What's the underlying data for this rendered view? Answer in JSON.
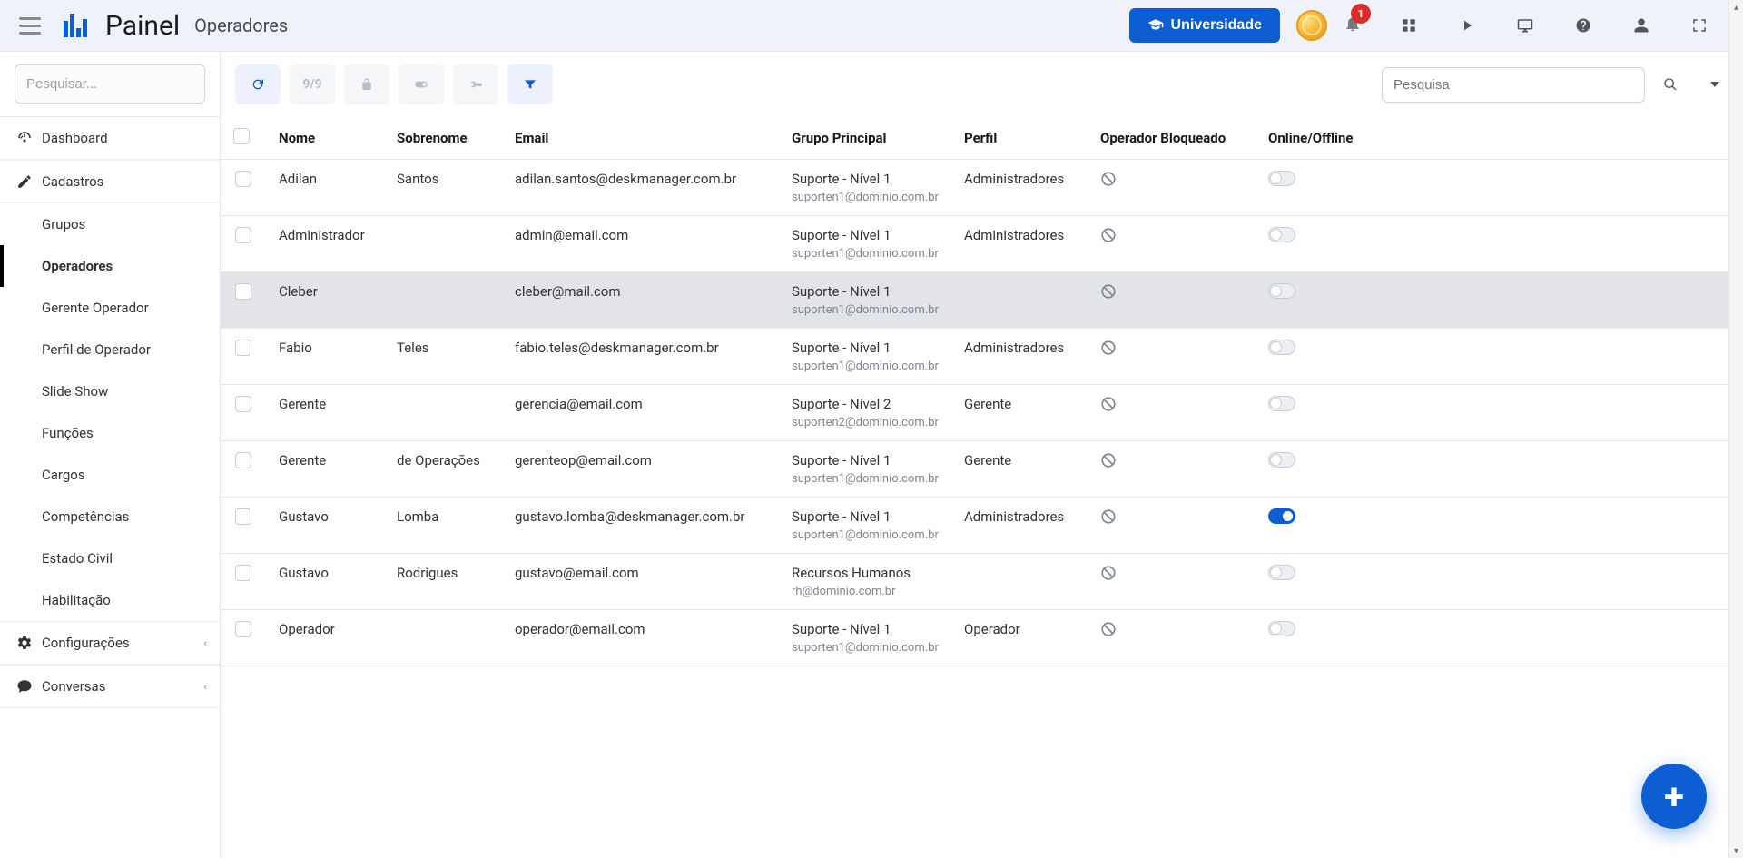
{
  "header": {
    "title": "Painel",
    "subtitle": "Operadores",
    "university_btn": "Universidade",
    "bell_badge": "1"
  },
  "sidebar": {
    "search_placeholder": "Pesquisar...",
    "items": [
      {
        "icon": "dashboard",
        "label": "Dashboard",
        "type": "section"
      },
      {
        "icon": "edit",
        "label": "Cadastros",
        "type": "section"
      },
      {
        "label": "Grupos",
        "type": "sub"
      },
      {
        "label": "Operadores",
        "type": "sub",
        "active": true
      },
      {
        "label": "Gerente Operador",
        "type": "sub"
      },
      {
        "label": "Perfil de Operador",
        "type": "sub"
      },
      {
        "label": "Slide Show",
        "type": "sub"
      },
      {
        "label": "Funções",
        "type": "sub"
      },
      {
        "label": "Cargos",
        "type": "sub"
      },
      {
        "label": "Competências",
        "type": "sub"
      },
      {
        "label": "Estado Civil",
        "type": "sub"
      },
      {
        "label": "Habilitação",
        "type": "sub"
      },
      {
        "icon": "gear",
        "label": "Configurações",
        "type": "section",
        "caret": true
      },
      {
        "icon": "chat",
        "label": "Conversas",
        "type": "section",
        "caret": true
      }
    ]
  },
  "toolbar": {
    "count": "9/9",
    "search_placeholder": "Pesquisa"
  },
  "table": {
    "columns": [
      "Nome",
      "Sobrenome",
      "Email",
      "Grupo Principal",
      "Perfil",
      "Operador Bloqueado",
      "Online/Offline"
    ],
    "rows": [
      {
        "nome": "Adilan",
        "sobrenome": "Santos",
        "email": "adilan.santos@deskmanager.com.br",
        "grupo": "Suporte - Nível 1",
        "grupo_sub": "suporten1@dominio.com.br",
        "perfil": "Administradores",
        "online": false,
        "hover": false
      },
      {
        "nome": "Administrador",
        "sobrenome": "",
        "email": "admin@email.com",
        "grupo": "Suporte - Nível 1",
        "grupo_sub": "suporten1@dominio.com.br",
        "perfil": "Administradores",
        "online": false,
        "hover": false
      },
      {
        "nome": "Cleber",
        "sobrenome": "",
        "email": "cleber@mail.com",
        "grupo": "Suporte - Nível 1",
        "grupo_sub": "suporten1@dominio.com.br",
        "perfil": "",
        "online": false,
        "hover": true
      },
      {
        "nome": "Fabio",
        "sobrenome": "Teles",
        "email": "fabio.teles@deskmanager.com.br",
        "grupo": "Suporte - Nível 1",
        "grupo_sub": "suporten1@dominio.com.br",
        "perfil": "Administradores",
        "online": false,
        "hover": false
      },
      {
        "nome": "Gerente",
        "sobrenome": "",
        "email": "gerencia@email.com",
        "grupo": "Suporte - Nível 2",
        "grupo_sub": "suporten2@dominio.com.br",
        "perfil": "Gerente",
        "online": false,
        "hover": false
      },
      {
        "nome": "Gerente",
        "sobrenome": "de Operações",
        "email": "gerenteop@email.com",
        "grupo": "Suporte - Nível 1",
        "grupo_sub": "suporten1@dominio.com.br",
        "perfil": "Gerente",
        "online": false,
        "hover": false
      },
      {
        "nome": "Gustavo",
        "sobrenome": "Lomba",
        "email": "gustavo.lomba@deskmanager.com.br",
        "grupo": "Suporte - Nível 1",
        "grupo_sub": "suporten1@dominio.com.br",
        "perfil": "Administradores",
        "online": true,
        "hover": false
      },
      {
        "nome": "Gustavo",
        "sobrenome": "Rodrigues",
        "email": "gustavo@email.com",
        "grupo": "Recursos Humanos",
        "grupo_sub": "rh@dominio.com.br",
        "perfil": "",
        "online": false,
        "hover": false
      },
      {
        "nome": "Operador",
        "sobrenome": "",
        "email": "operador@email.com",
        "grupo": "Suporte - Nível 1",
        "grupo_sub": "suporten1@dominio.com.br",
        "perfil": "Operador",
        "online": false,
        "hover": false
      }
    ]
  },
  "colors": {
    "primary": "#0d5dd3",
    "header_bg": "#eff2f9",
    "border": "#e5e7eb",
    "muted": "#7f8692",
    "badge": "#d92c2c"
  }
}
